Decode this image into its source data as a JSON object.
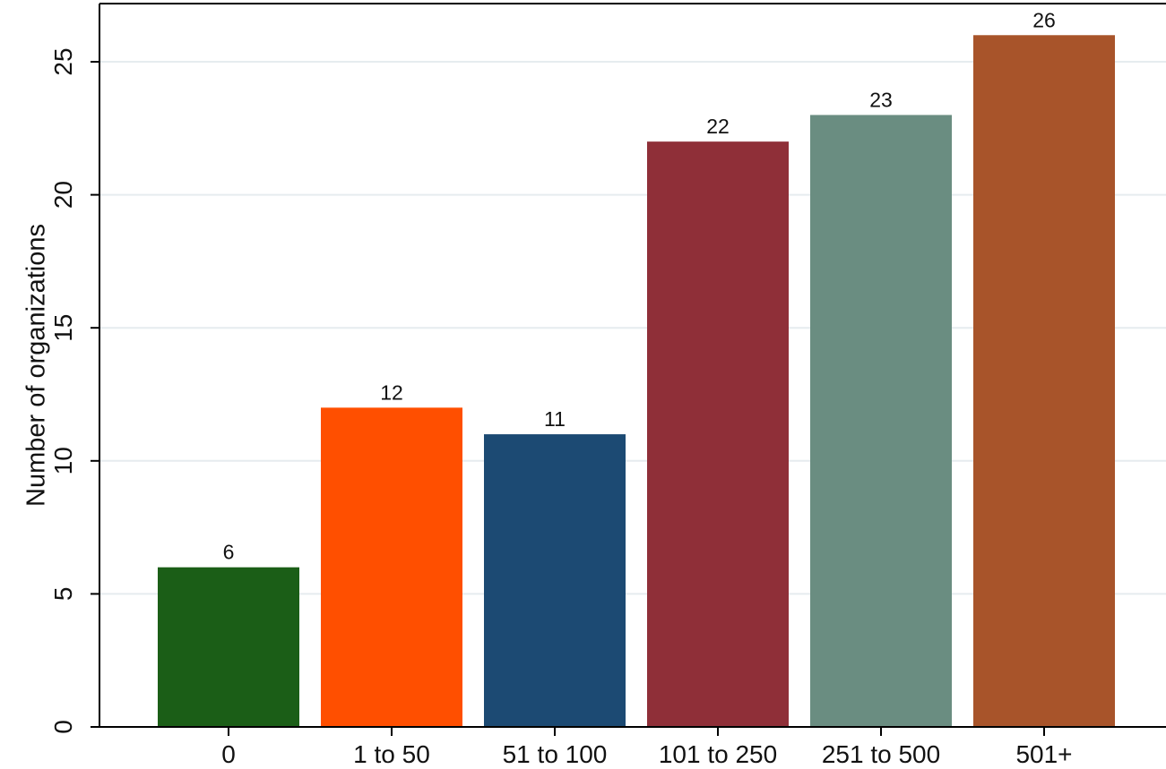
{
  "chart_data": {
    "type": "bar",
    "title": "",
    "xlabel": "",
    "ylabel": "Number of organizations",
    "ylim": [
      0,
      27
    ],
    "yticks": [
      0,
      5,
      10,
      15,
      20,
      25
    ],
    "grid": true,
    "legend": "none",
    "categories": [
      "0",
      "1 to 50",
      "51 to 100",
      "101 to 250",
      "251 to 500",
      "501+"
    ],
    "values": [
      6,
      12,
      11,
      22,
      23,
      26
    ],
    "colors": [
      "#1b5e17",
      "#ff4f00",
      "#1c4a73",
      "#8f2f38",
      "#6a8d81",
      "#a8542a"
    ]
  }
}
